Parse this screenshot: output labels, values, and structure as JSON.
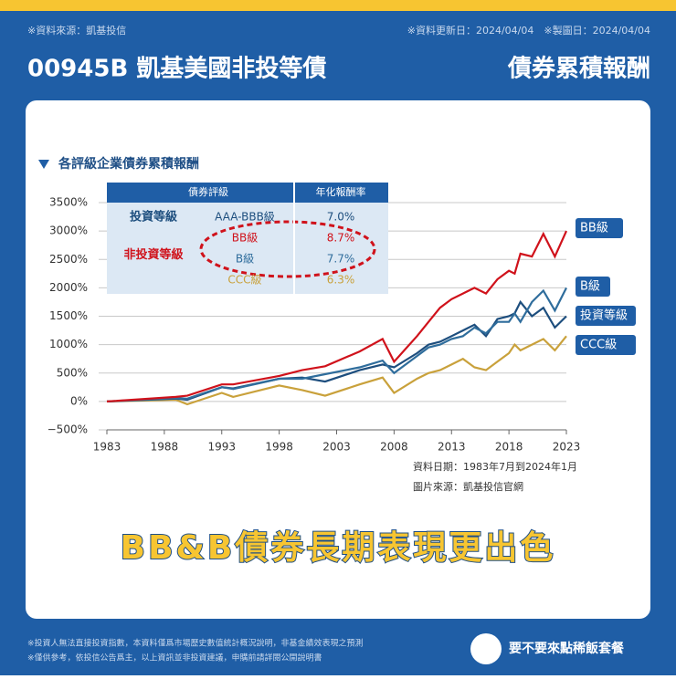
{
  "header": {
    "source": "※資料來源：凱基投信",
    "dates": "※資料更新日：2024/04/04　※製圖日：2024/04/04",
    "title": "00945B 凱基美國非投等債",
    "title2": "債券累積報酬"
  },
  "chart_data": {
    "type": "line",
    "title": "各評級企業債券累積報酬",
    "x": [
      1983,
      1989,
      1990,
      1993,
      1994,
      1998,
      2000,
      2002,
      2005,
      2007,
      2008,
      2010,
      2011,
      2012,
      2013,
      2014,
      2015,
      2016,
      2017,
      2018,
      2018.5,
      2019,
      2020,
      2021,
      2022,
      2023
    ],
    "series": [
      {
        "name": "BB級",
        "color": "#d0121b",
        "values": [
          0,
          80,
          100,
          300,
          300,
          450,
          550,
          620,
          880,
          1100,
          700,
          1150,
          1400,
          1650,
          1800,
          1900,
          2000,
          1900,
          2150,
          2300,
          2250,
          2600,
          2550,
          2950,
          2550,
          3000
        ]
      },
      {
        "name": "B級",
        "color": "#2f6d9c",
        "values": [
          0,
          60,
          50,
          250,
          220,
          400,
          400,
          480,
          600,
          720,
          500,
          800,
          950,
          1000,
          1100,
          1150,
          1300,
          1200,
          1400,
          1400,
          1550,
          1400,
          1750,
          1950,
          1600,
          2000
        ]
      },
      {
        "name": "投資等級",
        "color": "#1d4e7e",
        "values": [
          0,
          50,
          30,
          250,
          230,
          400,
          420,
          350,
          550,
          650,
          600,
          850,
          1000,
          1050,
          1150,
          1250,
          1350,
          1150,
          1450,
          1500,
          1550,
          1750,
          1500,
          1650,
          1300,
          1500
        ]
      },
      {
        "name": "CCC級",
        "color": "#c9a13b",
        "values": [
          0,
          30,
          -50,
          150,
          80,
          280,
          200,
          100,
          300,
          420,
          150,
          400,
          500,
          550,
          650,
          750,
          600,
          550,
          700,
          850,
          1000,
          900,
          1000,
          1100,
          900,
          1150
        ]
      }
    ],
    "xlim": [
      1983,
      2023
    ],
    "xticks": [
      1983,
      1988,
      1993,
      1998,
      2003,
      2008,
      2013,
      2018,
      2023
    ],
    "ylim": [
      -500,
      3500
    ],
    "yticks": [
      {
        "value": -500,
        "label": "−500%"
      },
      {
        "value": 0,
        "label": "0%"
      },
      {
        "value": 500,
        "label": "500%"
      },
      {
        "value": 1000,
        "label": "1000%"
      },
      {
        "value": 1500,
        "label": "1500%"
      },
      {
        "value": 2000,
        "label": "2000%"
      },
      {
        "value": 2500,
        "label": "2500%"
      },
      {
        "value": 3000,
        "label": "3000%"
      },
      {
        "value": 3500,
        "label": "3500%"
      }
    ],
    "grid": true,
    "notes": [
      "資料日期：1983年7月到2024年1月",
      "圖片來源：凱基投信官網"
    ]
  },
  "table": {
    "headers": [
      "債券評級",
      "年化報酬率"
    ],
    "groups": [
      {
        "label": "投資等級",
        "color": "#1d4e7e",
        "rows": [
          {
            "name": "AAA-BBB級",
            "rate": "7.0%",
            "color": "#1d4e7e"
          }
        ]
      },
      {
        "label": "非投資等級",
        "color": "#d0121b",
        "rows": [
          {
            "name": "BB級",
            "rate": "8.7%",
            "color": "#d0121b"
          },
          {
            "name": "B級",
            "rate": "7.7%",
            "color": "#2f6d9c"
          },
          {
            "name": "CCC級",
            "rate": "6.3%",
            "color": "#c9a13b"
          }
        ]
      }
    ]
  },
  "slogan": "BB&B債券長期表現更出色",
  "footer": {
    "lines": [
      "※投資人無法直接投資指數，本資料僅爲市場歷史數值統計概況說明，非基金績效表現之預測",
      "※僅供參考，依投信公告爲主，以上資訊並非投資建議，申購前請詳閱公開說明書"
    ],
    "brand": "要不要來點稀飯套餐"
  }
}
